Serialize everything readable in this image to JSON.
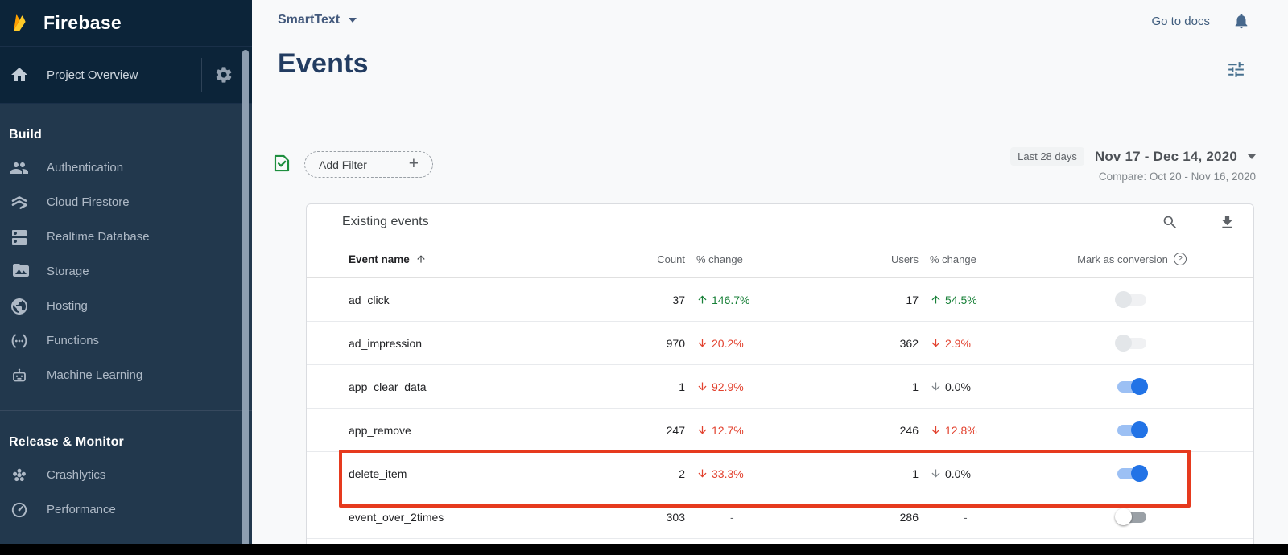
{
  "sidebar": {
    "brand": "Firebase",
    "project_overview": "Project Overview",
    "sections": [
      {
        "title": "Build",
        "items": [
          {
            "label": "Authentication",
            "icon": "people-icon"
          },
          {
            "label": "Cloud Firestore",
            "icon": "firestore-icon"
          },
          {
            "label": "Realtime Database",
            "icon": "database-icon"
          },
          {
            "label": "Storage",
            "icon": "storage-icon"
          },
          {
            "label": "Hosting",
            "icon": "globe-icon"
          },
          {
            "label": "Functions",
            "icon": "functions-icon"
          },
          {
            "label": "Machine Learning",
            "icon": "robot-icon"
          }
        ]
      },
      {
        "title": "Release & Monitor",
        "items": [
          {
            "label": "Crashlytics",
            "icon": "crashlytics-icon"
          },
          {
            "label": "Performance",
            "icon": "speedometer-icon"
          }
        ]
      }
    ]
  },
  "topbar": {
    "project_name": "SmartText",
    "go_to_docs": "Go to docs"
  },
  "page": {
    "title": "Events"
  },
  "filter_bar": {
    "add_filter_label": "Add Filter",
    "range_shortcut": "Last 28 days",
    "date_range": "Nov 17 - Dec 14, 2020",
    "compare_range": "Compare: Oct 20 - Nov 16, 2020"
  },
  "events_table": {
    "title": "Existing events",
    "columns": {
      "event_name": "Event name",
      "count": "Count",
      "count_change": "% change",
      "users": "Users",
      "users_change": "% change",
      "mark_as_conversion": "Mark as conversion"
    },
    "rows": [
      {
        "name": "ad_click",
        "count": "37",
        "count_change": {
          "dir": "up",
          "value": "146.7%",
          "tone": "green"
        },
        "users": "17",
        "users_change": {
          "dir": "up",
          "value": "54.5%",
          "tone": "green"
        },
        "toggle": "off-disabled",
        "highlighted": false
      },
      {
        "name": "ad_impression",
        "count": "970",
        "count_change": {
          "dir": "down",
          "value": "20.2%",
          "tone": "red"
        },
        "users": "362",
        "users_change": {
          "dir": "down",
          "value": "2.9%",
          "tone": "red"
        },
        "toggle": "off-disabled",
        "highlighted": false
      },
      {
        "name": "app_clear_data",
        "count": "1",
        "count_change": {
          "dir": "down",
          "value": "92.9%",
          "tone": "red"
        },
        "users": "1",
        "users_change": {
          "dir": "down",
          "value": "0.0%",
          "tone": "neutral"
        },
        "toggle": "on",
        "highlighted": false
      },
      {
        "name": "app_remove",
        "count": "247",
        "count_change": {
          "dir": "down",
          "value": "12.7%",
          "tone": "red"
        },
        "users": "246",
        "users_change": {
          "dir": "down",
          "value": "12.8%",
          "tone": "red"
        },
        "toggle": "on",
        "highlighted": false
      },
      {
        "name": "delete_item",
        "count": "2",
        "count_change": {
          "dir": "down",
          "value": "33.3%",
          "tone": "red"
        },
        "users": "1",
        "users_change": {
          "dir": "down",
          "value": "0.0%",
          "tone": "neutral"
        },
        "toggle": "on",
        "highlighted": true
      },
      {
        "name": "event_over_2times",
        "count": "303",
        "count_change": {
          "dir": "none",
          "value": "-",
          "tone": "plain"
        },
        "users": "286",
        "users_change": {
          "dir": "none",
          "value": "-",
          "tone": "plain"
        },
        "toggle": "off",
        "highlighted": false
      }
    ]
  },
  "icons": {
    "brand": "flame-icon",
    "project_settings": "gear-icon",
    "project_home": "home-icon",
    "notifications": "bell-icon",
    "page_filters": "tune-sliders-icon",
    "filter_status": "checked-document-icon",
    "add_filter": "plus-icon",
    "table_search": "search-icon",
    "table_download": "download-icon",
    "conversion_help": "help-circle-icon",
    "sort": "arrow-up-icon"
  },
  "colors": {
    "positive": "#188038",
    "negative": "#e2422f",
    "neutral_arrow": "#80868b",
    "toggle_on_thumb": "#2273e6",
    "toggle_on_track": "#9cc0f4",
    "highlight": "#e63a1e",
    "flame_yellow": "#FFCA28",
    "flame_orange": "#FFA000",
    "flame_dark_orange": "#F57C00"
  }
}
